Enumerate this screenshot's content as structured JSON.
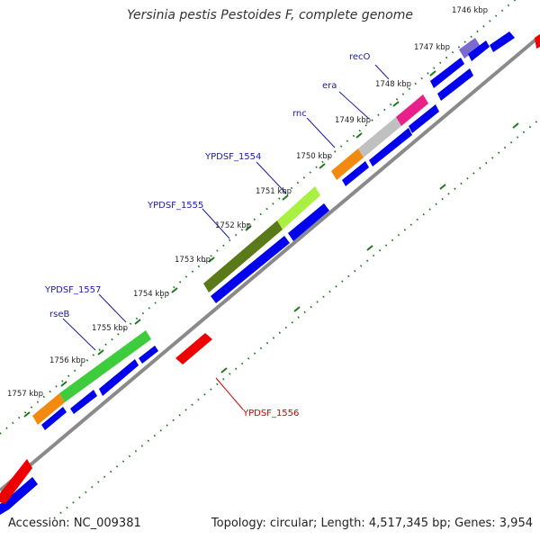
{
  "title": "Yersinia pestis Pestoides F, complete genome",
  "accession": "Accession: NC_009381",
  "summary": "Topology: circular; Length: 4,517,345 bp; Genes: 3,954",
  "kbp_labels": [
    "1746 kbp",
    "1747 kbp",
    "1748 kbp",
    "1749 kbp",
    "1750 kbp",
    "1751 kbp",
    "1752 kbp",
    "1753 kbp",
    "1754 kbp",
    "1755 kbp",
    "1756 kbp",
    "1757 kbp"
  ],
  "gene_labels": [
    "recO",
    "era",
    "rnc",
    "YPDSF_1554",
    "YPDSF_1555",
    "YPDSF_1557",
    "rseB",
    "YPDSF_1556"
  ],
  "colors": {
    "cds": "#0000ee",
    "minus_strand_cds": "#ee0000",
    "backbone": "#8a8a8a",
    "tick": "#1f7a1f",
    "plus_label": "#1a1aa6",
    "minus_label": "#cc0000",
    "orange": "#f28a10",
    "green": "#3ccc3c",
    "olive": "#5a7a1a",
    "lime": "#aaf040",
    "gray": "#c0c0c0",
    "magenta": "#e8208a",
    "violet": "#7b6ad0"
  }
}
